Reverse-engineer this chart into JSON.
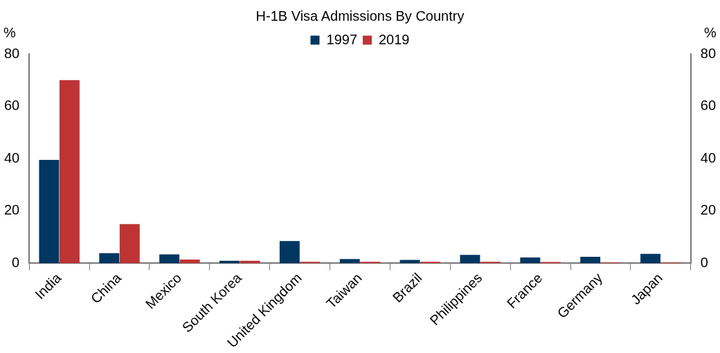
{
  "chart_data": {
    "type": "bar",
    "title": "H-1B Visa Admissions By Country",
    "ylabel": "%",
    "y2label": "%",
    "categories": [
      "India",
      "China",
      "Mexico",
      "South Korea",
      "United Kingdom",
      "Taiwan",
      "Brazil",
      "Philippines",
      "France",
      "Germany",
      "Japan"
    ],
    "series": [
      {
        "name": "1997",
        "color": "#003761",
        "values": [
          39.5,
          3.9,
          3.4,
          1.0,
          8.5,
          1.6,
          1.3,
          3.2,
          2.2,
          2.5,
          3.6
        ]
      },
      {
        "name": "2019",
        "color": "#be3333",
        "values": [
          70,
          15,
          1.4,
          1.0,
          0.6,
          0.6,
          0.6,
          0.6,
          0.5,
          0.3,
          0.3
        ]
      }
    ],
    "ylim": [
      0,
      80
    ],
    "yticks": [
      0,
      20,
      40,
      60,
      80
    ],
    "y2lim": [
      0,
      80
    ],
    "y2ticks": [
      0,
      20,
      40,
      60,
      80
    ],
    "grid": false,
    "legend": "top"
  }
}
